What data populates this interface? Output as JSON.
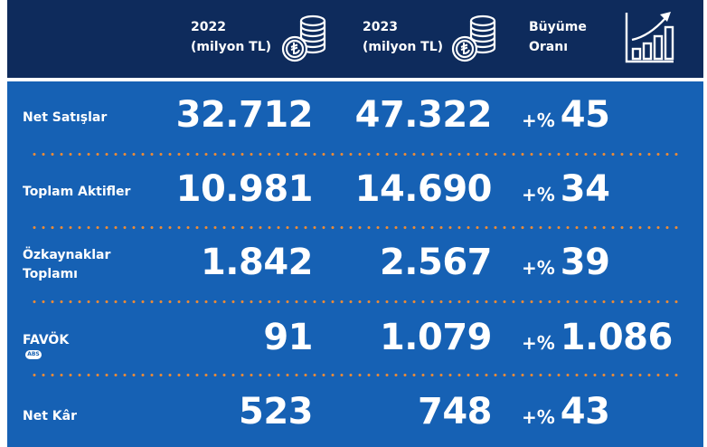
{
  "header": {
    "col2022": {
      "year": "2022",
      "unit": "(milyon TL)"
    },
    "col2023": {
      "year": "2023",
      "unit": "(milyon TL)"
    },
    "growth": {
      "line1": "Büyüme",
      "line2": "Oranı"
    },
    "icons": {
      "coin": "lira-coin-stack-icon",
      "growth": "growth-bar-chart-icon"
    }
  },
  "rows": [
    {
      "label_line1": "Net Satışlar",
      "label_line2": "",
      "v2022": "32.712",
      "v2023": "47.322",
      "growth_prefix": "+%",
      "growth_value": "45"
    },
    {
      "label_line1": "Toplam Aktifler",
      "label_line2": "",
      "v2022": "10.981",
      "v2023": "14.690",
      "growth_prefix": "+%",
      "growth_value": "34"
    },
    {
      "label_line1": "Özkaynaklar",
      "label_line2": "Toplamı",
      "v2022": "1.842",
      "v2023": "2.567",
      "growth_prefix": "+%",
      "growth_value": "39"
    },
    {
      "label_line1": "FAVÖK",
      "label_badge": "ABS",
      "label_line2": "",
      "v2022": "91",
      "v2023": "1.079",
      "growth_prefix": "+%",
      "growth_value": "1.086"
    },
    {
      "label_line1": "Net Kâr",
      "label_line2": "",
      "v2022": "523",
      "v2023": "748",
      "growth_prefix": "+%",
      "growth_value": "43"
    }
  ],
  "colors": {
    "header_bg": "#0e2b5c",
    "body_bg": "#1661b4",
    "separator": "#e98a37",
    "text": "#ffffff"
  }
}
